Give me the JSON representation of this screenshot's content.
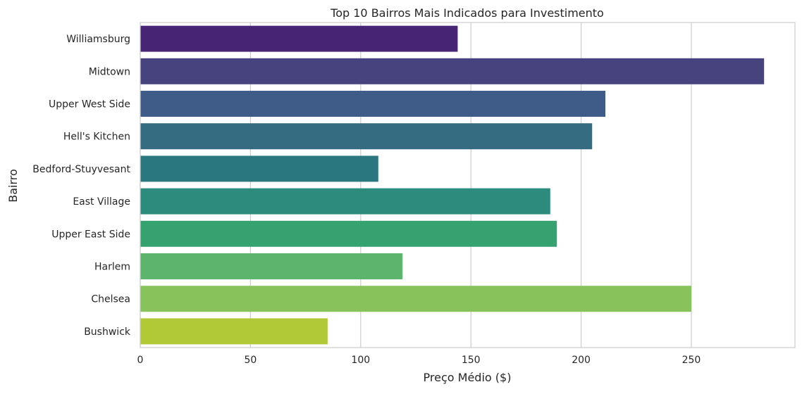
{
  "chart_data": {
    "type": "bar",
    "orientation": "horizontal",
    "title": "Top 10 Bairros Mais Indicados para Investimento",
    "xlabel": "Preço Médio ($)",
    "ylabel": "Bairro",
    "categories": [
      "Williamsburg",
      "Midtown",
      "Upper West Side",
      "Hell's Kitchen",
      "Bedford-Stuyvesant",
      "East Village",
      "Upper East Side",
      "Harlem",
      "Chelsea",
      "Bushwick"
    ],
    "values": [
      144,
      283,
      211,
      205,
      108,
      186,
      189,
      119,
      250,
      85
    ],
    "colors": [
      "#482475",
      "#46437f",
      "#3f5b88",
      "#366c82",
      "#2b7780",
      "#2d8b7d",
      "#36a26f",
      "#5db46c",
      "#87c35a",
      "#b1c936"
    ],
    "xlim": [
      0,
      297
    ],
    "xticks": [
      0,
      50,
      100,
      150,
      200,
      250
    ],
    "grid": true,
    "legend": "none"
  }
}
